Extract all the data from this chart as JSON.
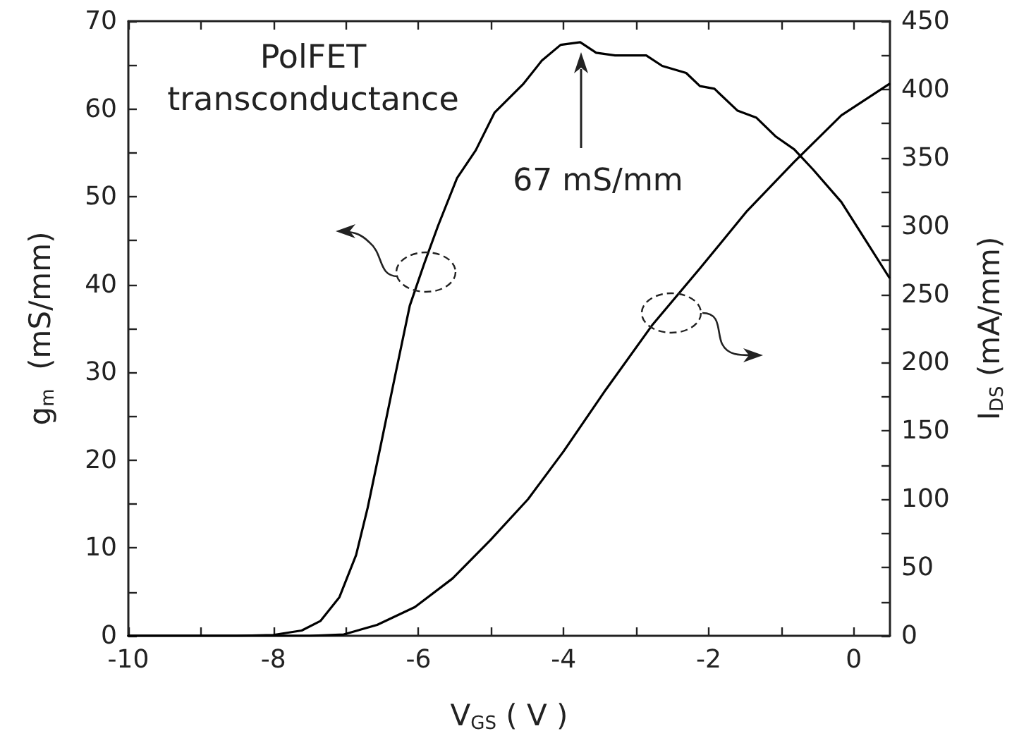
{
  "chart_data": {
    "type": "line",
    "xlabel": "V$_{GS}$ ( V )",
    "ylabel": "g$_{m}$  (mS/mm)",
    "y2label": "I$_{DS}$ (mA/mm)",
    "annotations": [
      "PolFET\ntransconductance",
      "67 mS/mm"
    ],
    "series": [
      {
        "color": "#000000",
        "x": [
          -10,
          -9,
          -8.5,
          -8,
          -7.61,
          -7.35,
          -7.09,
          -6.86,
          -6.7,
          -6.51,
          -6.31,
          -6.12,
          -5.92,
          -5.73,
          -5.47,
          -5.21,
          -4.95,
          -4.56,
          -4.3,
          -4.04,
          -3.77,
          -3.55,
          -3.29,
          -2.86,
          -2.64,
          -2.31,
          -2.12,
          -1.92,
          -1.6,
          -1.34,
          -1.08,
          -0.82,
          -0.56,
          -0.17,
          0.16,
          0.49
        ],
        "values": [
          0,
          0,
          0,
          0.1,
          0.6,
          1.7,
          4.4,
          9.2,
          14.6,
          22.1,
          30.1,
          37.6,
          42.4,
          46.7,
          52.1,
          55.3,
          59.6,
          62.8,
          65.5,
          67.3,
          67.6,
          66.4,
          66.1,
          66.1,
          64.9,
          64.1,
          62.6,
          62.3,
          59.8,
          59,
          56.9,
          55.4,
          53.1,
          49.4,
          45.1,
          40.8
        ]
      },
      {
        "color": "#000000",
        "axis": "y2",
        "x": [
          -10,
          -9,
          -8,
          -7.5,
          -7.03,
          -6.57,
          -6.05,
          -5.53,
          -5.01,
          -4.49,
          -4,
          -3.42,
          -2.77,
          -2.12,
          -1.47,
          -0.82,
          -0.17,
          0.49
        ],
        "values": [
          0,
          0,
          0,
          0,
          1,
          8,
          21,
          42,
          70,
          100,
          135,
          180,
          228,
          269,
          311,
          347,
          381,
          404
        ]
      }
    ],
    "xlim": [
      -10,
      0.5
    ],
    "xticks": [
      -10,
      {
        "value": -9,
        "label": null
      },
      -8,
      {
        "value": -7,
        "label": null
      },
      -6,
      {
        "value": -5,
        "label": null
      },
      -4,
      {
        "value": -3,
        "label": null
      },
      -2,
      {
        "value": -1,
        "label": null
      },
      0
    ],
    "ylim": [
      0,
      70
    ],
    "yticks": [
      0,
      {
        "value": 5,
        "label": null
      },
      10,
      {
        "value": 15,
        "label": null
      },
      20,
      {
        "value": 25,
        "label": null
      },
      30,
      {
        "value": 35,
        "label": null
      },
      40,
      {
        "value": 45,
        "label": null
      },
      50,
      {
        "value": 55,
        "label": null
      },
      60,
      {
        "value": 65,
        "label": null
      },
      70
    ],
    "y2lim": [
      0,
      450
    ],
    "y2ticks": [
      0,
      {
        "value": 25,
        "label": null
      },
      50,
      {
        "value": 75,
        "label": null
      },
      100,
      {
        "value": 125,
        "label": null
      },
      150,
      {
        "value": 175,
        "label": null
      },
      200,
      {
        "value": 225,
        "label": null
      },
      250,
      {
        "value": 275,
        "label": null
      },
      300,
      {
        "value": 325,
        "label": null
      },
      350,
      {
        "value": 375,
        "label": null
      },
      400,
      {
        "value": 425,
        "label": null
      },
      450
    ],
    "grid": false,
    "marker": "none",
    "line_style": "solid"
  }
}
